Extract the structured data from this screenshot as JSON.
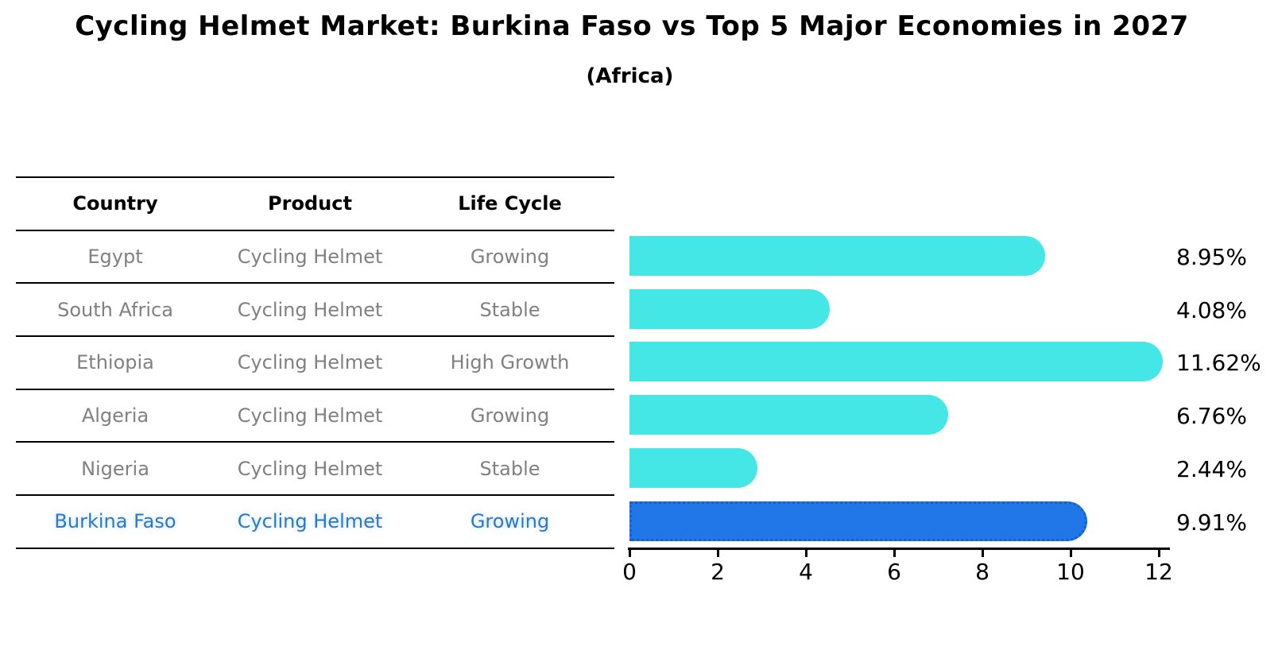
{
  "title": "Cycling Helmet Market: Burkina Faso vs Top 5 Major Economies in 2027",
  "subtitle": "(Africa)",
  "table": {
    "headers": [
      "Country",
      "Product",
      "Life Cycle"
    ],
    "rows": [
      {
        "country": "Egypt",
        "product": "Cycling Helmet",
        "life_cycle": "Growing",
        "highlight": false
      },
      {
        "country": "South Africa",
        "product": "Cycling Helmet",
        "life_cycle": "Stable",
        "highlight": false
      },
      {
        "country": "Ethiopia",
        "product": "Cycling Helmet",
        "life_cycle": "High Growth",
        "highlight": false
      },
      {
        "country": "Algeria",
        "product": "Cycling Helmet",
        "life_cycle": "Growing",
        "highlight": false
      },
      {
        "country": "Nigeria",
        "product": "Cycling Helmet",
        "life_cycle": "Stable",
        "highlight": false
      },
      {
        "country": "Burkina Faso",
        "product": "Cycling Helmet",
        "life_cycle": "Growing",
        "highlight": true
      }
    ]
  },
  "chart_data": {
    "type": "bar",
    "orientation": "horizontal",
    "title": "Cycling Helmet Market: Burkina Faso vs Top 5 Major Economies in 2027 (Africa)",
    "categories": [
      "Egypt",
      "South Africa",
      "Ethiopia",
      "Algeria",
      "Nigeria",
      "Burkina Faso"
    ],
    "values": [
      8.95,
      4.08,
      11.62,
      6.76,
      2.44,
      9.91
    ],
    "value_labels": [
      "8.95%",
      "4.08%",
      "11.62%",
      "6.76%",
      "2.44%",
      "9.91%"
    ],
    "xlim": [
      0,
      12
    ],
    "xticks": [
      "0",
      "2",
      "4",
      "6",
      "8",
      "10",
      "12"
    ],
    "grid": false,
    "legend": "none",
    "highlight_index": 5,
    "bar_color": "#45e6e6",
    "highlight_color": "#2176e8",
    "highlight_border_color": "#1a5ec9"
  }
}
